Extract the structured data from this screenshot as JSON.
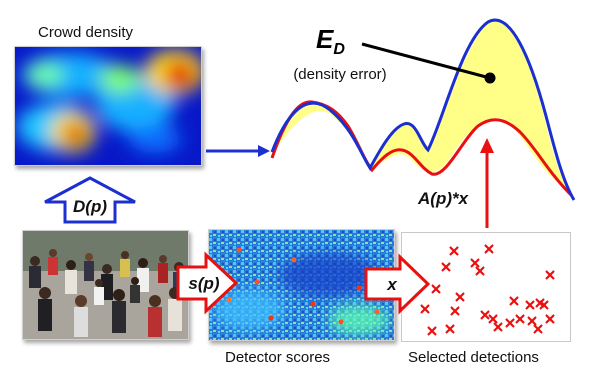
{
  "captions": {
    "crowd_density": "Crowd density",
    "detector_scores": "Detector scores",
    "selected_detections": "Selected detections"
  },
  "arrows": {
    "density_map": "D(p)",
    "score_map": "s(p)",
    "selection": "x",
    "projection": "A(p)*x"
  },
  "error_label": {
    "symbol": "E",
    "subscript": "D",
    "text": "(density error)"
  },
  "colors": {
    "estimated_curve": "#e81010",
    "target_curve": "#1c2fd0",
    "error_fill": "#ffff88",
    "arrow_blue": "#1c2fd0",
    "arrow_red": "#e81010",
    "detection_marker": "#e81010"
  }
}
